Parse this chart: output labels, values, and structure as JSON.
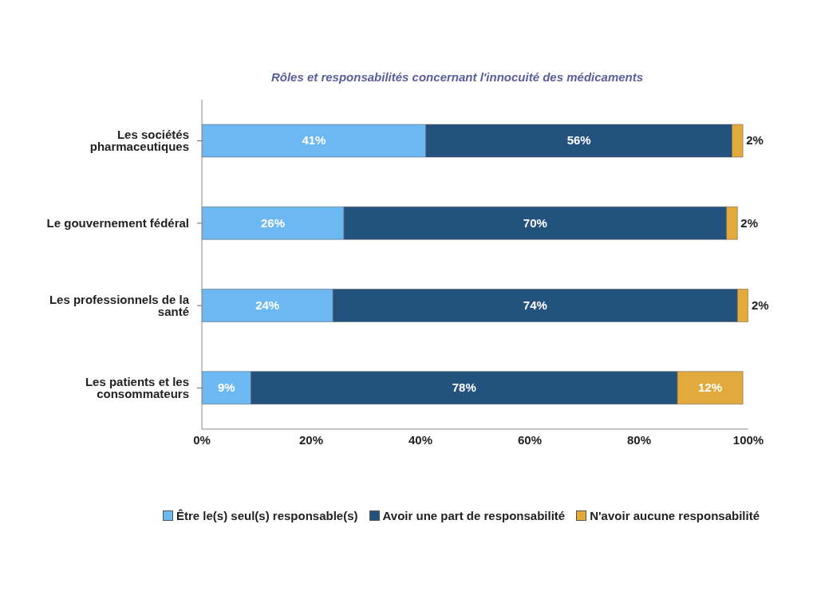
{
  "chart_data": {
    "type": "bar",
    "orientation": "horizontal",
    "stacked": true,
    "title": "Rôles et responsabilités concernant l'innocuité des médicaments",
    "categories": [
      "Les sociétés pharmaceutiques",
      "Le gouvernement fédéral",
      "Les professionnels de la santé",
      "Les patients et les consommateurs"
    ],
    "series": [
      {
        "name": "Être le(s) seul(s) responsable(s)",
        "color": "#6cb8f2",
        "values": [
          41,
          26,
          24,
          9
        ]
      },
      {
        "name": "Avoir une part de responsabilité",
        "color": "#24527f",
        "values": [
          56,
          70,
          74,
          78
        ]
      },
      {
        "name": "N'avoir aucune responsabilité",
        "color": "#e2a93c",
        "values": [
          2,
          2,
          2,
          12
        ]
      }
    ],
    "value_labels": [
      [
        "41%",
        "26%",
        "24%",
        "9%"
      ],
      [
        "56%",
        "70%",
        "74%",
        "78%"
      ],
      [
        "2%",
        "2%",
        "2%",
        "12%"
      ]
    ],
    "xlim": [
      0,
      100
    ],
    "xticks": [
      {
        "value": 0,
        "label": "0%"
      },
      {
        "value": 20,
        "label": "20%"
      },
      {
        "value": 40,
        "label": "40%"
      },
      {
        "value": 60,
        "label": "60%"
      },
      {
        "value": 80,
        "label": "80%"
      },
      {
        "value": 100,
        "label": "100%"
      }
    ],
    "grid": false,
    "legend": "bottom"
  }
}
